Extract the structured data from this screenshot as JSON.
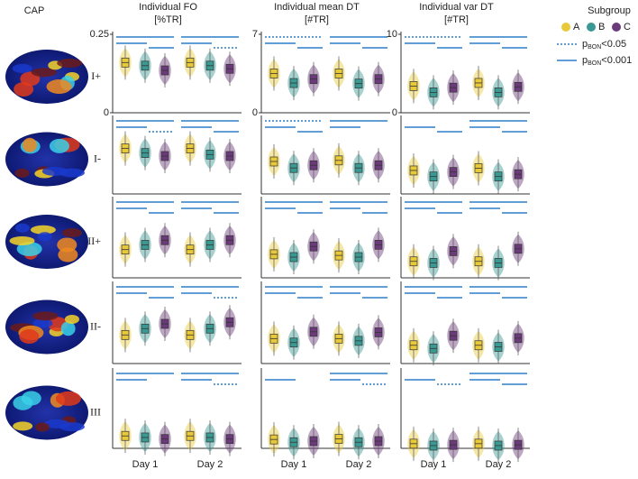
{
  "figure": {
    "cap_header": "CAP",
    "row_labels": [
      "I+",
      "I-",
      "II+",
      "II-",
      "III"
    ],
    "legend": {
      "title": "Subgroup",
      "entries": [
        {
          "symbol": "p",
          "subscript": "BON",
          "threshold": "<0.05"
        },
        {
          "symbol": "p",
          "subscript": "BON",
          "threshold": "<0.001"
        }
      ]
    },
    "subgroups": [
      {
        "name": "A",
        "color": "#e8c93a"
      },
      {
        "name": "B",
        "color": "#3a9a93"
      },
      {
        "name": "C",
        "color": "#6b3a7a"
      }
    ]
  },
  "chart_data": [
    {
      "type": "violin",
      "title": "Individual FO",
      "subtitle": "[%TR]",
      "ylim": [
        0,
        0.25
      ],
      "yticks": [
        0,
        0.25
      ],
      "series": [
        {
          "values": [
            0.16,
            0.16
          ]
        },
        {
          "values": [
            0.15,
            0.15
          ]
        },
        {
          "values": [
            0.135,
            0.14
          ]
        }
      ],
      "significance": [
        [
          "<0.001",
          "<0.001",
          "<0.001"
        ],
        [
          "<0.001",
          "<0.001",
          "<0.05"
        ]
      ]
    },
    {
      "type": "violin",
      "title": "Individual mean DT",
      "subtitle": "[#TR]",
      "ylim": [
        0,
        7
      ],
      "yticks": [
        0,
        7
      ],
      "series": [
        {
          "values": [
            3.5,
            3.5
          ]
        },
        {
          "values": [
            2.65,
            2.6
          ]
        },
        {
          "values": [
            3.0,
            3.0
          ]
        }
      ],
      "significance": [
        [
          "<0.05",
          "<0.001",
          "<0.001"
        ],
        [
          "<0.001",
          "<0.001",
          "<0.001"
        ]
      ]
    },
    {
      "type": "violin",
      "title": "Individual var DT",
      "subtitle": "[#TR]",
      "ylim": [
        0,
        10
      ],
      "yticks": [
        0,
        10
      ],
      "series": [
        {
          "values": [
            3.4,
            3.8
          ]
        },
        {
          "values": [
            2.6,
            2.6
          ]
        },
        {
          "values": [
            3.2,
            3.3
          ]
        }
      ],
      "significance": [
        [
          "<0.05",
          "<0.001",
          "<0.001"
        ],
        [
          "<0.001",
          "<0.001",
          "<0.001"
        ]
      ]
    },
    {
      "type": "violin",
      "ylim": [
        0,
        0.25
      ],
      "series": [
        {
          "values": [
            0.15,
            0.15
          ]
        },
        {
          "values": [
            0.135,
            0.13
          ]
        },
        {
          "values": [
            0.125,
            0.125
          ]
        }
      ],
      "significance": [
        [
          "<0.001",
          "<0.001",
          "<0.05"
        ],
        [
          "<0.001",
          "<0.001",
          "<0.001"
        ]
      ]
    },
    {
      "type": "violin",
      "ylim": [
        0,
        7
      ],
      "series": [
        {
          "values": [
            3.0,
            3.1
          ]
        },
        {
          "values": [
            2.4,
            2.4
          ]
        },
        {
          "values": [
            2.65,
            2.65
          ]
        }
      ],
      "significance": [
        [
          "<0.05",
          "<0.001",
          "<0.001"
        ],
        [
          "<0.001",
          "<0.001",
          null
        ]
      ]
    },
    {
      "type": "violin",
      "ylim": [
        0,
        10
      ],
      "series": [
        {
          "values": [
            3.1,
            3.4
          ]
        },
        {
          "values": [
            2.3,
            2.3
          ]
        },
        {
          "values": [
            2.9,
            2.6
          ]
        }
      ],
      "significance": [
        [
          null,
          "<0.001",
          "<0.001"
        ],
        [
          "<0.001",
          "<0.001",
          "<0.001"
        ]
      ]
    },
    {
      "type": "violin",
      "ylim": [
        0,
        0.25
      ],
      "series": [
        {
          "values": [
            0.09,
            0.09
          ]
        },
        {
          "values": [
            0.105,
            0.105
          ]
        },
        {
          "values": [
            0.12,
            0.12
          ]
        }
      ],
      "significance": [
        [
          "<0.001",
          "<0.001",
          "<0.001"
        ],
        [
          "<0.001",
          "<0.001",
          "<0.001"
        ]
      ]
    },
    {
      "type": "violin",
      "ylim": [
        0,
        7
      ],
      "series": [
        {
          "values": [
            2.1,
            2.0
          ]
        },
        {
          "values": [
            1.85,
            1.85
          ]
        },
        {
          "values": [
            2.8,
            2.95
          ]
        }
      ],
      "significance": [
        [
          "<0.001",
          "<0.001",
          "<0.001"
        ],
        [
          "<0.001",
          "<0.001",
          "<0.001"
        ]
      ]
    },
    {
      "type": "violin",
      "ylim": [
        0,
        10
      ],
      "series": [
        {
          "values": [
            2.1,
            2.1
          ]
        },
        {
          "values": [
            1.9,
            1.9
          ]
        },
        {
          "values": [
            3.4,
            3.7
          ]
        }
      ],
      "significance": [
        [
          "<0.001",
          "<0.001",
          "<0.001"
        ],
        [
          "<0.001",
          "<0.001",
          "<0.001"
        ]
      ]
    },
    {
      "type": "violin",
      "ylim": [
        0,
        0.25
      ],
      "series": [
        {
          "values": [
            0.09,
            0.09
          ]
        },
        {
          "values": [
            0.11,
            0.11
          ]
        },
        {
          "values": [
            0.125,
            0.13
          ]
        }
      ],
      "significance": [
        [
          "<0.001",
          "<0.001",
          "<0.001"
        ],
        [
          "<0.001",
          "<0.001",
          "<0.05"
        ]
      ]
    },
    {
      "type": "violin",
      "ylim": [
        0,
        7
      ],
      "series": [
        {
          "values": [
            2.2,
            2.2
          ]
        },
        {
          "values": [
            1.85,
            2.0
          ]
        },
        {
          "values": [
            2.8,
            2.75
          ]
        }
      ],
      "significance": [
        [
          "<0.001",
          "<0.001",
          "<0.001"
        ],
        [
          "<0.001",
          "<0.001",
          "<0.001"
        ]
      ]
    },
    {
      "type": "violin",
      "ylim": [
        0,
        10
      ],
      "series": [
        {
          "values": [
            2.3,
            2.3
          ]
        },
        {
          "values": [
            1.9,
            2.1
          ]
        },
        {
          "values": [
            3.5,
            3.2
          ]
        }
      ],
      "significance": [
        [
          "<0.001",
          "<0.001",
          "<0.001"
        ],
        [
          "<0.001",
          "<0.001",
          "<0.001"
        ]
      ]
    },
    {
      "type": "violin",
      "categories": [
        "Day 1",
        "Day 2"
      ],
      "ylim": [
        0,
        0.25
      ],
      "series": [
        {
          "values": [
            0.04,
            0.04
          ]
        },
        {
          "values": [
            0.035,
            0.035
          ]
        },
        {
          "values": [
            0.03,
            0.03
          ]
        }
      ],
      "significance": [
        [
          "<0.001",
          "<0.001",
          null
        ],
        [
          "<0.001",
          "<0.001",
          "<0.05"
        ]
      ]
    },
    {
      "type": "violin",
      "categories": [
        "Day 1",
        "Day 2"
      ],
      "ylim": [
        0,
        7
      ],
      "series": [
        {
          "values": [
            0.8,
            0.85
          ]
        },
        {
          "values": [
            0.55,
            0.55
          ]
        },
        {
          "values": [
            0.65,
            0.65
          ]
        }
      ],
      "significance": [
        [
          null,
          "<0.001",
          null
        ],
        [
          "<0.001",
          "<0.001",
          "<0.05"
        ]
      ]
    },
    {
      "type": "violin",
      "categories": [
        "Day 1",
        "Day 2"
      ],
      "ylim": [
        0,
        10
      ],
      "series": [
        {
          "values": [
            0.6,
            0.6
          ]
        },
        {
          "values": [
            0.35,
            0.35
          ]
        },
        {
          "values": [
            0.45,
            0.45
          ]
        }
      ],
      "significance": [
        [
          null,
          "<0.001",
          "<0.05"
        ],
        [
          "<0.001",
          "<0.001",
          "<0.001"
        ]
      ]
    }
  ]
}
